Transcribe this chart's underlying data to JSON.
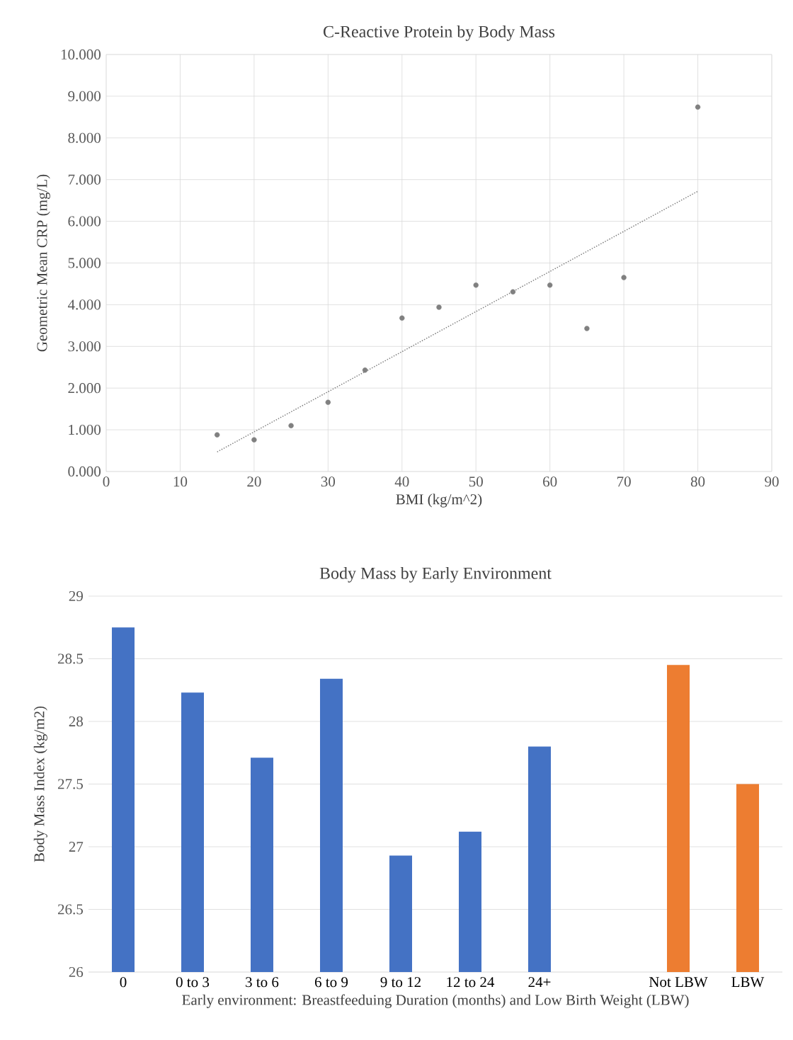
{
  "chart_data": [
    {
      "type": "scatter",
      "title": "C-Reactive Protein by Body Mass",
      "xlabel": "BMI (kg/m^2)",
      "ylabel": "Geometric Mean CRP (mg/L)",
      "series": [
        {
          "color": "#808080",
          "marker": "circle",
          "x": [
            15,
            20,
            25,
            30,
            35,
            40,
            45,
            50,
            55,
            60,
            65,
            70,
            80
          ],
          "values": [
            0.88,
            0.76,
            1.1,
            1.66,
            2.43,
            3.68,
            3.94,
            4.47,
            4.31,
            4.47,
            3.43,
            4.65,
            8.74
          ]
        },
        {
          "type": "line",
          "color": "#808080",
          "line_style": "dotted",
          "marker": "none",
          "x": [
            15,
            80
          ],
          "values": [
            0.47,
            6.72
          ]
        }
      ],
      "xlim": [
        0,
        90
      ],
      "xticks": [
        0,
        10,
        20,
        30,
        40,
        50,
        60,
        70,
        80,
        90
      ],
      "ylim": [
        0,
        10
      ],
      "yticks": [
        {
          "value": 0,
          "label": "0.000"
        },
        {
          "value": 1,
          "label": "1.000"
        },
        {
          "value": 2,
          "label": "2.000"
        },
        {
          "value": 3,
          "label": "3.000"
        },
        {
          "value": 4,
          "label": "4.000"
        },
        {
          "value": 5,
          "label": "5.000"
        },
        {
          "value": 6,
          "label": "6.000"
        },
        {
          "value": 7,
          "label": "7.000"
        },
        {
          "value": 8,
          "label": "8.000"
        },
        {
          "value": 9,
          "label": "9.000"
        },
        {
          "value": 10,
          "label": "10.000"
        }
      ],
      "grid": true
    },
    {
      "type": "bar",
      "title": "Body Mass by Early Environment",
      "xlabel": "Early environment: Breastfeeduing Duration (months) and Low Birth Weight (LBW)",
      "ylabel": "Body Mass Index (kg/m2)",
      "categories": [
        "0",
        "0 to 3",
        "3 to 6",
        "6 to 9",
        "9 to 12",
        "12 to 24",
        "24+",
        null,
        "Not LBW",
        "LBW"
      ],
      "series": [
        {
          "color": "#4472c4",
          "values": [
            28.75,
            28.23,
            27.71,
            28.34,
            26.93,
            27.12,
            27.8,
            null,
            null,
            null
          ]
        },
        {
          "color": "#ed7d31",
          "values": [
            null,
            null,
            null,
            null,
            null,
            null,
            null,
            null,
            28.45,
            27.5
          ]
        }
      ],
      "ylim": [
        26,
        29
      ],
      "yticks": [
        26,
        26.5,
        27,
        27.5,
        28,
        28.5,
        29
      ],
      "grid": "y"
    }
  ]
}
